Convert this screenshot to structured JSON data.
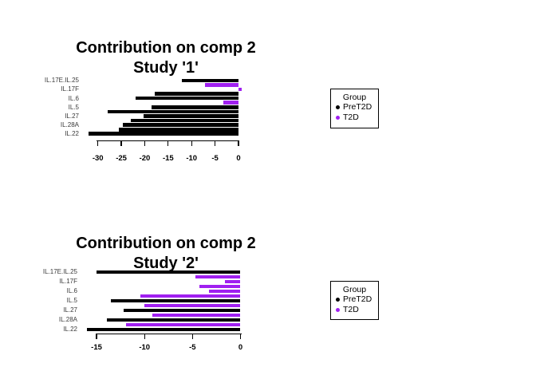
{
  "page": {
    "background": "#ffffff"
  },
  "colors": {
    "PreT2D": "#000000",
    "T2D": "#A020F0"
  },
  "legend": {
    "title": "Group",
    "entries": [
      {
        "label": "PreT2D",
        "color": "#000000"
      },
      {
        "label": "T2D",
        "color": "#A020F0"
      }
    ]
  },
  "chart_data": [
    {
      "type": "bar",
      "orientation": "horizontal",
      "title": "Contribution on comp 2",
      "subtitle": "Study '1'",
      "xlabel": "",
      "ylabel": "",
      "xlim": [
        -32.5,
        1
      ],
      "x_ticks": [
        -30,
        -25,
        -20,
        -15,
        -10,
        -5,
        0
      ],
      "categories_shown": [
        "IL.17E.IL.25",
        "IL.17F",
        "IL.6",
        "IL.5",
        "IL.27",
        "IL.28A",
        "IL.22"
      ],
      "legend_position": "right",
      "grid": false,
      "bars": [
        {
          "value": -12.1,
          "group": "PreT2D"
        },
        {
          "value": -7.2,
          "group": "T2D"
        },
        {
          "value": 0.7,
          "group": "T2D"
        },
        {
          "value": -17.8,
          "group": "PreT2D"
        },
        {
          "value": -22.0,
          "group": "PreT2D"
        },
        {
          "value": -3.2,
          "group": "T2D"
        },
        {
          "value": -18.6,
          "group": "PreT2D"
        },
        {
          "value": -27.9,
          "group": "PreT2D"
        },
        {
          "value": -20.3,
          "group": "PreT2D"
        },
        {
          "value": -22.9,
          "group": "PreT2D"
        },
        {
          "value": -24.6,
          "group": "PreT2D"
        },
        {
          "value": -25.5,
          "group": "PreT2D"
        },
        {
          "value": -32.0,
          "group": "PreT2D"
        }
      ]
    },
    {
      "type": "bar",
      "orientation": "horizontal",
      "title": "Contribution on comp 2",
      "subtitle": "Study '2'",
      "xlabel": "",
      "ylabel": "",
      "xlim": [
        -16.5,
        0.5
      ],
      "x_ticks": [
        -15,
        -10,
        -5,
        0
      ],
      "categories_shown": [
        "IL.17E.IL.25",
        "IL.17F",
        "IL.6",
        "IL.5",
        "IL.27",
        "IL.28A",
        "IL.22"
      ],
      "legend_position": "right",
      "grid": false,
      "bars": [
        {
          "value": -15.0,
          "group": "PreT2D"
        },
        {
          "value": -4.7,
          "group": "T2D"
        },
        {
          "value": -1.6,
          "group": "T2D"
        },
        {
          "value": -4.3,
          "group": "T2D"
        },
        {
          "value": -3.3,
          "group": "T2D"
        },
        {
          "value": -10.4,
          "group": "T2D"
        },
        {
          "value": -13.5,
          "group": "PreT2D"
        },
        {
          "value": -10.0,
          "group": "T2D"
        },
        {
          "value": -12.2,
          "group": "PreT2D"
        },
        {
          "value": -9.2,
          "group": "T2D"
        },
        {
          "value": -13.9,
          "group": "PreT2D"
        },
        {
          "value": -11.9,
          "group": "T2D"
        },
        {
          "value": -16.0,
          "group": "PreT2D"
        }
      ]
    }
  ]
}
